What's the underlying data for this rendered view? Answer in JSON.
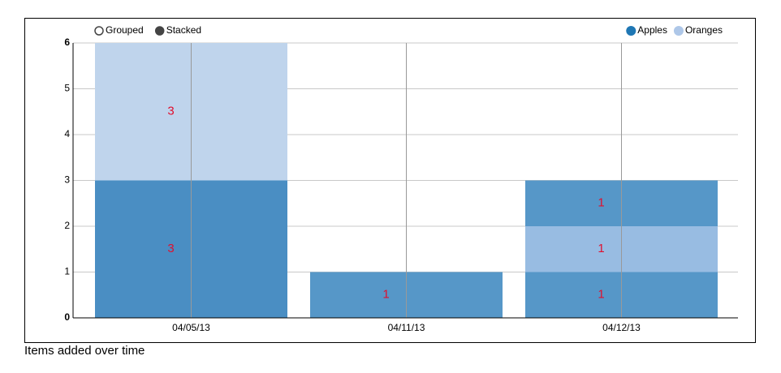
{
  "chart_data": {
    "type": "stacked-bar",
    "controls": [
      "Grouped",
      "Stacked"
    ],
    "series": [
      {
        "name": "Apples",
        "color": "#1f77b4"
      },
      {
        "name": "Oranges",
        "color": "#aec7e8"
      }
    ],
    "categories": [
      "04/05/13",
      "04/11/13",
      "04/12/13"
    ],
    "stacks": [
      [
        {
          "value": 3,
          "color": "#4a8ec3"
        },
        {
          "value": 3,
          "color": "#bfd4ec"
        }
      ],
      [
        {
          "value": 1,
          "color": "#5697c8"
        }
      ],
      [
        {
          "value": 1,
          "color": "#5697c8"
        },
        {
          "value": 1,
          "color": "#98bce2"
        },
        {
          "value": 1,
          "color": "#5697c8"
        }
      ]
    ],
    "ylim": [
      0,
      6
    ],
    "yticks": [
      0,
      1,
      2,
      3,
      4,
      5,
      6
    ],
    "grid": true,
    "caption": "Items added over time"
  }
}
